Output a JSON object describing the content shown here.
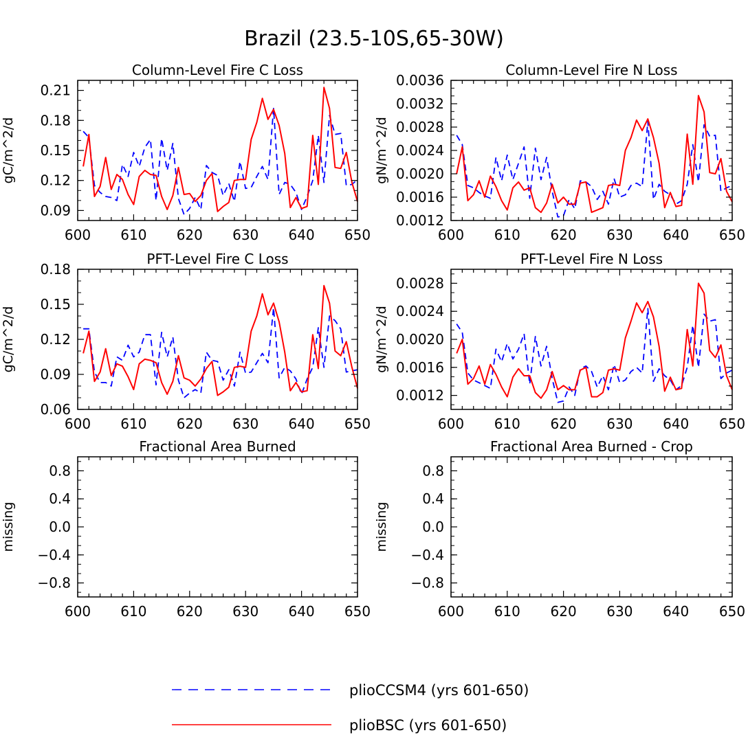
{
  "figure": {
    "title": "Brazil (23.5-10S,65-30W)"
  },
  "colors": {
    "pliocesm": "#0000ff",
    "pliobsc": "#ff0000",
    "axes": "#000000"
  },
  "legend": {
    "items": [
      {
        "label": "plioCCSM4 (yrs 601-650)",
        "color": "#0000ff",
        "style": "dashed"
      },
      {
        "label": "plioBSC (yrs 601-650)",
        "color": "#ff0000",
        "style": "solid"
      }
    ]
  },
  "chart_data": [
    {
      "type": "line",
      "title": "Column-Level Fire C Loss",
      "xlabel": "",
      "ylabel": "gC/m^2/d",
      "xlim": [
        600,
        650
      ],
      "ylim": [
        0.08,
        0.22
      ],
      "xticks": [
        600,
        610,
        620,
        630,
        640,
        650
      ],
      "yticks": [
        0.09,
        0.12,
        0.15,
        0.18,
        0.21
      ],
      "ytick_labels": [
        "0.09",
        "0.12",
        "0.15",
        "0.18",
        "0.21"
      ],
      "x": [
        601,
        602,
        603,
        604,
        605,
        606,
        607,
        608,
        609,
        610,
        611,
        612,
        613,
        614,
        615,
        616,
        617,
        618,
        619,
        620,
        621,
        622,
        623,
        624,
        625,
        626,
        627,
        628,
        629,
        630,
        631,
        632,
        633,
        634,
        635,
        636,
        637,
        638,
        639,
        640,
        641,
        642,
        643,
        644,
        645,
        646,
        647,
        648,
        649,
        650
      ],
      "series": [
        {
          "name": "plioCCSM4 (yrs 601-650)",
          "style": "dashed",
          "values": [
            0.169,
            0.163,
            0.115,
            0.108,
            0.104,
            0.103,
            0.1,
            0.136,
            0.124,
            0.148,
            0.134,
            0.153,
            0.161,
            0.1,
            0.162,
            0.13,
            0.157,
            0.102,
            0.086,
            0.092,
            0.103,
            0.091,
            0.135,
            0.128,
            0.125,
            0.105,
            0.117,
            0.099,
            0.139,
            0.112,
            0.113,
            0.124,
            0.134,
            0.121,
            0.192,
            0.106,
            0.118,
            0.116,
            0.108,
            0.091,
            0.104,
            0.12,
            0.165,
            0.118,
            0.185,
            0.166,
            0.167,
            0.115,
            0.116,
            0.121
          ]
        },
        {
          "name": "plioBSC (yrs 601-650)",
          "style": "solid",
          "values": [
            0.134,
            0.166,
            0.104,
            0.114,
            0.143,
            0.111,
            0.126,
            0.121,
            0.106,
            0.096,
            0.124,
            0.13,
            0.126,
            0.125,
            0.104,
            0.091,
            0.105,
            0.133,
            0.106,
            0.107,
            0.099,
            0.105,
            0.12,
            0.127,
            0.089,
            0.094,
            0.098,
            0.12,
            0.121,
            0.121,
            0.161,
            0.178,
            0.202,
            0.181,
            0.191,
            0.175,
            0.147,
            0.093,
            0.103,
            0.092,
            0.094,
            0.165,
            0.116,
            0.213,
            0.192,
            0.133,
            0.132,
            0.148,
            0.118,
            0.099
          ]
        }
      ]
    },
    {
      "type": "line",
      "title": "Column-Level Fire N Loss",
      "xlabel": "",
      "ylabel": "gN/m^2/d",
      "xlim": [
        600,
        650
      ],
      "ylim": [
        0.0012,
        0.0036
      ],
      "xticks": [
        600,
        610,
        620,
        630,
        640,
        650
      ],
      "yticks": [
        0.0012,
        0.0016,
        0.002,
        0.0024,
        0.0028,
        0.0032,
        0.0036
      ],
      "ytick_labels": [
        "0.0012",
        "0.0016",
        "0.0020",
        "0.0024",
        "0.0028",
        "0.0032",
        "0.0036"
      ],
      "x": [
        601,
        602,
        603,
        604,
        605,
        606,
        607,
        608,
        609,
        610,
        611,
        612,
        613,
        614,
        615,
        616,
        617,
        618,
        619,
        620,
        621,
        622,
        623,
        624,
        625,
        626,
        627,
        628,
        629,
        630,
        631,
        632,
        633,
        634,
        635,
        636,
        637,
        638,
        639,
        640,
        641,
        642,
        643,
        644,
        645,
        646,
        647,
        648,
        649,
        650
      ],
      "series": [
        {
          "name": "plioCCSM4 (yrs 601-650)",
          "style": "dashed",
          "values": [
            0.00266,
            0.0025,
            0.0018,
            0.00176,
            0.00168,
            0.00162,
            0.00158,
            0.00228,
            0.00188,
            0.00232,
            0.0019,
            0.00218,
            0.00246,
            0.00158,
            0.00244,
            0.0019,
            0.00228,
            0.0017,
            0.00126,
            0.00128,
            0.00156,
            0.0014,
            0.00188,
            0.00186,
            0.00178,
            0.00156,
            0.0017,
            0.00148,
            0.00192,
            0.0016,
            0.00164,
            0.0018,
            0.00184,
            0.00178,
            0.0029,
            0.00156,
            0.00182,
            0.0017,
            0.00164,
            0.00148,
            0.00154,
            0.00182,
            0.0025,
            0.00186,
            0.00284,
            0.00264,
            0.00266,
            0.0017,
            0.00176,
            0.0018
          ]
        },
        {
          "name": "plioBSC (yrs 601-650)",
          "style": "solid",
          "values": [
            0.002,
            0.00246,
            0.00154,
            0.00164,
            0.00188,
            0.0016,
            0.00196,
            0.00178,
            0.00154,
            0.00138,
            0.00176,
            0.00186,
            0.00172,
            0.00176,
            0.00142,
            0.00134,
            0.0015,
            0.00182,
            0.0015,
            0.0016,
            0.00148,
            0.00148,
            0.00184,
            0.00186,
            0.00134,
            0.00138,
            0.00142,
            0.0018,
            0.00182,
            0.0018,
            0.0024,
            0.00262,
            0.00292,
            0.00274,
            0.00294,
            0.00262,
            0.00218,
            0.00142,
            0.00168,
            0.00144,
            0.00146,
            0.00268,
            0.00182,
            0.00334,
            0.00306,
            0.00202,
            0.002,
            0.00226,
            0.0017,
            0.00152
          ]
        }
      ]
    },
    {
      "type": "line",
      "title": "PFT-Level Fire C Loss",
      "xlabel": "",
      "ylabel": "gC/m^2/d",
      "xlim": [
        600,
        650
      ],
      "ylim": [
        0.06,
        0.18
      ],
      "xticks": [
        600,
        610,
        620,
        630,
        640,
        650
      ],
      "yticks": [
        0.06,
        0.09,
        0.12,
        0.15,
        0.18
      ],
      "ytick_labels": [
        "0.06",
        "0.09",
        "0.12",
        "0.15",
        "0.18"
      ],
      "x": [
        601,
        602,
        603,
        604,
        605,
        606,
        607,
        608,
        609,
        610,
        611,
        612,
        613,
        614,
        615,
        616,
        617,
        618,
        619,
        620,
        621,
        622,
        623,
        624,
        625,
        626,
        627,
        628,
        629,
        630,
        631,
        632,
        633,
        634,
        635,
        636,
        637,
        638,
        639,
        640,
        641,
        642,
        643,
        644,
        645,
        646,
        647,
        648,
        649,
        650
      ],
      "series": [
        {
          "name": "plioCCSM4 (yrs 601-650)",
          "style": "dashed",
          "values": [
            0.129,
            0.129,
            0.092,
            0.083,
            0.083,
            0.08,
            0.105,
            0.102,
            0.115,
            0.105,
            0.109,
            0.124,
            0.124,
            0.081,
            0.126,
            0.105,
            0.122,
            0.085,
            0.07,
            0.074,
            0.077,
            0.074,
            0.109,
            0.102,
            0.101,
            0.085,
            0.094,
            0.08,
            0.109,
            0.091,
            0.092,
            0.1,
            0.108,
            0.1,
            0.147,
            0.087,
            0.096,
            0.093,
            0.086,
            0.073,
            0.086,
            0.096,
            0.13,
            0.096,
            0.14,
            0.136,
            0.129,
            0.092,
            0.093,
            0.094
          ]
        },
        {
          "name": "plioBSC (yrs 601-650)",
          "style": "solid",
          "values": [
            0.108,
            0.127,
            0.084,
            0.092,
            0.112,
            0.089,
            0.099,
            0.097,
            0.088,
            0.077,
            0.099,
            0.103,
            0.102,
            0.1,
            0.083,
            0.073,
            0.084,
            0.106,
            0.087,
            0.085,
            0.08,
            0.086,
            0.095,
            0.101,
            0.072,
            0.075,
            0.079,
            0.096,
            0.097,
            0.096,
            0.127,
            0.14,
            0.159,
            0.141,
            0.151,
            0.135,
            0.109,
            0.076,
            0.083,
            0.075,
            0.076,
            0.124,
            0.095,
            0.166,
            0.151,
            0.11,
            0.106,
            0.118,
            0.096,
            0.078
          ]
        }
      ]
    },
    {
      "type": "line",
      "title": "PFT-Level Fire N Loss",
      "xlabel": "",
      "ylabel": "gN/m^2/d",
      "xlim": [
        600,
        650
      ],
      "ylim": [
        0.001,
        0.003
      ],
      "xticks": [
        600,
        610,
        620,
        630,
        640,
        650
      ],
      "yticks": [
        0.0012,
        0.0016,
        0.002,
        0.0024,
        0.0028
      ],
      "ytick_labels": [
        "0.0012",
        "0.0016",
        "0.0020",
        "0.0024",
        "0.0028"
      ],
      "x": [
        601,
        602,
        603,
        604,
        605,
        606,
        607,
        608,
        609,
        610,
        611,
        612,
        613,
        614,
        615,
        616,
        617,
        618,
        619,
        620,
        621,
        622,
        623,
        624,
        625,
        626,
        627,
        628,
        629,
        630,
        631,
        632,
        633,
        634,
        635,
        636,
        637,
        638,
        639,
        640,
        641,
        642,
        643,
        644,
        645,
        646,
        647,
        648,
        649,
        650
      ],
      "series": [
        {
          "name": "plioCCSM4 (yrs 601-650)",
          "style": "dashed",
          "values": [
            0.00222,
            0.0021,
            0.00152,
            0.00142,
            0.00138,
            0.00134,
            0.0013,
            0.00186,
            0.00168,
            0.00194,
            0.00172,
            0.00186,
            0.00208,
            0.00136,
            0.00204,
            0.00162,
            0.0019,
            0.00144,
            0.0011,
            0.00112,
            0.00132,
            0.0012,
            0.00158,
            0.00162,
            0.00154,
            0.00132,
            0.00148,
            0.00128,
            0.00164,
            0.00138,
            0.00142,
            0.00154,
            0.0016,
            0.00152,
            0.00244,
            0.0014,
            0.00158,
            0.00148,
            0.00142,
            0.00128,
            0.00134,
            0.0016,
            0.0022,
            0.0016,
            0.00236,
            0.00226,
            0.00228,
            0.00144,
            0.00152,
            0.00156
          ]
        },
        {
          "name": "plioBSC (yrs 601-650)",
          "style": "solid",
          "values": [
            0.0018,
            0.002,
            0.00136,
            0.00144,
            0.00162,
            0.00136,
            0.00164,
            0.0015,
            0.00132,
            0.00118,
            0.00146,
            0.00158,
            0.00148,
            0.00148,
            0.00124,
            0.00116,
            0.00128,
            0.00154,
            0.00128,
            0.00134,
            0.00128,
            0.00128,
            0.00156,
            0.0016,
            0.00118,
            0.00118,
            0.00124,
            0.00156,
            0.00158,
            0.00156,
            0.00202,
            0.00226,
            0.00252,
            0.00238,
            0.00254,
            0.00232,
            0.0019,
            0.00126,
            0.00146,
            0.00128,
            0.0013,
            0.00214,
            0.00162,
            0.0028,
            0.00266,
            0.00184,
            0.00174,
            0.00192,
            0.00148,
            0.00128
          ]
        }
      ]
    },
    {
      "type": "line",
      "title": "Fractional Area Burned",
      "xlabel": "",
      "ylabel": "missing",
      "xlim": [
        600,
        650
      ],
      "ylim": [
        -1.0,
        1.0
      ],
      "xticks": [
        600,
        610,
        620,
        630,
        640,
        650
      ],
      "yticks": [
        -0.8,
        -0.4,
        0.0,
        0.4,
        0.8
      ],
      "ytick_labels": [
        "−0.8",
        "−0.4",
        "0.0",
        "0.4",
        "0.8"
      ],
      "x": [],
      "series": []
    },
    {
      "type": "line",
      "title": "Fractional Area Burned - Crop",
      "xlabel": "",
      "ylabel": "missing",
      "xlim": [
        600,
        650
      ],
      "ylim": [
        -1.0,
        1.0
      ],
      "xticks": [
        600,
        610,
        620,
        630,
        640,
        650
      ],
      "yticks": [
        -0.8,
        -0.4,
        0.0,
        0.4,
        0.8
      ],
      "ytick_labels": [
        "−0.8",
        "−0.4",
        "0.0",
        "0.4",
        "0.8"
      ],
      "x": [],
      "series": []
    }
  ]
}
